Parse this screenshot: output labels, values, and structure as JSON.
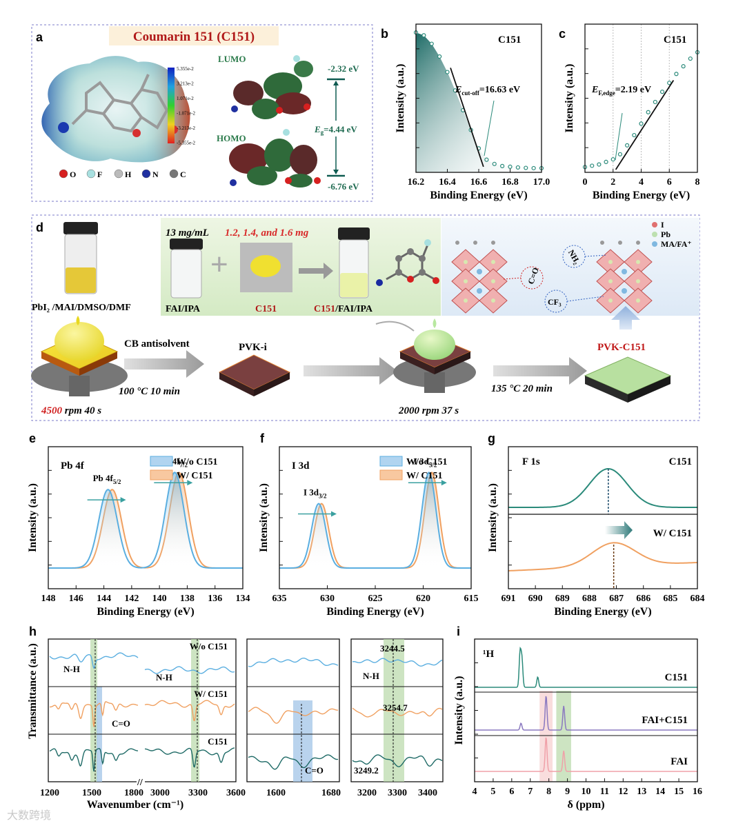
{
  "panel_a": {
    "label": "a",
    "title": "Coumarin 151 (C151)",
    "lumo_label": "LUMO",
    "homo_label": "HOMO",
    "lumo_energy": "-2.32 eV",
    "homo_energy": "-6.76 eV",
    "gap_symbol": "E",
    "gap_sub": "g",
    "gap_value": "=4.44 eV",
    "colorbar_ticks": [
      "5.355e-2",
      "3.213e-2",
      "1.071e-2",
      "-1.071e-2",
      "-3.213e-2",
      "-5.355e-2"
    ],
    "legend": [
      {
        "label": "O",
        "color": "#d62020"
      },
      {
        "label": "F",
        "color": "#a8e0e0"
      },
      {
        "label": "H",
        "color": "#bbbbbb"
      },
      {
        "label": "N",
        "color": "#2030a0"
      },
      {
        "label": "C",
        "color": "#777777"
      }
    ]
  },
  "panel_d": {
    "label": "d",
    "vial1_label": "PbI₂ /MAI/DMSO/DMF",
    "conc": "13 mg/mL",
    "masses": "1.2, 1.4, and 1.6 mg",
    "vial2_label": "FAI/IPA",
    "powder_label": "C151",
    "vial3_label_a": "C151",
    "vial3_label_b": "/FAI/IPA",
    "legend": [
      "I",
      "Pb",
      "MA/FA⁺"
    ],
    "co_label": "C=O",
    "nh_label": "NH₂",
    "cf_label": "CF₃",
    "antisolvent": "CB antisolvent",
    "step1_a": "4500",
    "step1_b": " rpm  40 s",
    "step2": "100 °C  10 min",
    "pvk_i": "PVK-i",
    "step3": "2000 rpm  37 s",
    "step4": "135 °C  20 min",
    "pvk_c151": "PVK-C151"
  },
  "chart_data": [
    {
      "panel": "b",
      "type": "scatter",
      "title": "C151",
      "xlabel": "Binding Energy (eV)",
      "ylabel": "Intensity (a.u.)",
      "xlim": [
        16.2,
        17.0
      ],
      "xticks": [
        "16.2",
        "16.4",
        "16.6",
        "16.8",
        "17.0"
      ],
      "annotation": {
        "sym": "E",
        "sub": "cut-off",
        "value": "=16.63 eV"
      },
      "x": [
        16.2,
        16.25,
        16.3,
        16.35,
        16.4,
        16.45,
        16.5,
        16.55,
        16.6,
        16.65,
        16.7,
        16.75,
        16.8,
        16.85,
        16.9,
        16.95,
        17.0
      ],
      "y": [
        0.97,
        0.95,
        0.89,
        0.8,
        0.69,
        0.56,
        0.42,
        0.28,
        0.15,
        0.07,
        0.04,
        0.025,
        0.02,
        0.015,
        0.012,
        0.01,
        0.01
      ],
      "fit_line": [
        [
          16.42,
          0.72
        ],
        [
          16.63,
          0.02
        ]
      ]
    },
    {
      "panel": "c",
      "type": "scatter",
      "title": "C151",
      "xlabel": "Binding Energy (eV)",
      "ylabel": "Intensity (a.u.)",
      "xlim": [
        0,
        8
      ],
      "xticks": [
        "0",
        "2",
        "4",
        "6",
        "8"
      ],
      "annotation": {
        "sym": "E",
        "sub": "F,edge",
        "value": "=2.19 eV"
      },
      "x": [
        0,
        0.5,
        1,
        1.5,
        2,
        2.5,
        3,
        3.5,
        4,
        4.5,
        5,
        5.5,
        6,
        6.5,
        7,
        7.5,
        8
      ],
      "y": [
        0.02,
        0.03,
        0.04,
        0.06,
        0.08,
        0.12,
        0.19,
        0.27,
        0.36,
        0.45,
        0.53,
        0.61,
        0.68,
        0.75,
        0.81,
        0.87,
        0.92
      ],
      "fit_line": [
        [
          2.19,
          0.0
        ],
        [
          6.3,
          0.7
        ]
      ]
    },
    {
      "panel": "e",
      "type": "line",
      "title": "Pb 4f",
      "xlabel": "Binding Energy (eV)",
      "ylabel": "Intensity (a.u.)",
      "xlim": [
        148,
        134
      ],
      "xticks": [
        "148",
        "146",
        "144",
        "142",
        "140",
        "138",
        "136",
        "134"
      ],
      "legend": [
        "W/o C151",
        "W/   C151"
      ],
      "peaks": [
        {
          "label": "Pb 4f",
          "sub": "5/2",
          "wo": 143.7,
          "w": 143.4,
          "h": 0.78
        },
        {
          "label": "Pb 4f",
          "sub": "7/2",
          "wo": 138.9,
          "w": 138.6,
          "h": 0.95
        }
      ]
    },
    {
      "panel": "f",
      "type": "line",
      "title": "I 3d",
      "xlabel": "Binding Energy (eV)",
      "ylabel": "Intensity (a.u.)",
      "xlim": [
        635,
        615
      ],
      "xticks": [
        "635",
        "630",
        "625",
        "620",
        "615"
      ],
      "legend": [
        "W/o C151",
        "W/   C151"
      ],
      "peaks": [
        {
          "label": "I 3d",
          "sub": "3/2",
          "wo": 630.9,
          "w": 630.6,
          "h": 0.64
        },
        {
          "label": "I 3d",
          "sub": "5/2",
          "wo": 619.4,
          "w": 619.1,
          "h": 0.95
        }
      ]
    },
    {
      "panel": "g",
      "type": "line",
      "title": "F 1s",
      "xlabel": "Binding Energy (eV)",
      "ylabel": "Intensity (a.u.)",
      "xlim": [
        691,
        684
      ],
      "xticks": [
        "691",
        "690",
        "689",
        "688",
        "687",
        "686",
        "685",
        "684"
      ],
      "series": [
        {
          "name": "C151",
          "peak": 687.3
        },
        {
          "name": "W/  C151",
          "peak": 687.1
        }
      ]
    },
    {
      "panel": "h",
      "type": "line",
      "xlabel": "Wavenumber (cm⁻¹)",
      "ylabel": "Transmittance (a.u.)",
      "series_names": [
        "W/o C151",
        "W/  C151",
        "C151"
      ],
      "xticks_left": [
        "1200",
        "1500",
        "1800",
        "3000",
        "3300",
        "3600"
      ],
      "xticks_mid": [
        "1600",
        "1680"
      ],
      "xticks_right": [
        "3200",
        "3300",
        "3400"
      ],
      "annotations": [
        "N-H",
        "N-H",
        "C=O",
        "C=O",
        "N-H",
        "3244.5",
        "3254.7",
        "3249.2"
      ]
    },
    {
      "panel": "i",
      "type": "line",
      "title": "¹H",
      "xlabel": "δ (ppm)",
      "ylabel": "Intensity (a.u.)",
      "xlim": [
        4,
        16
      ],
      "xticks": [
        "4",
        "5",
        "6",
        "7",
        "8",
        "9",
        "10",
        "11",
        "12",
        "13",
        "14",
        "15",
        "16"
      ],
      "series_names": [
        "C151",
        "FAI+C151",
        "FAI"
      ]
    }
  ],
  "colors": {
    "teal": "#2a8a7a",
    "blue": "#5aaee0",
    "orange": "#f0a060",
    "purple": "#8a78c0",
    "pink": "#f0a0a8",
    "green_bar": "#b8d8a8",
    "blue_bar": "#a8c8e8"
  },
  "watermark": "大数跨境"
}
